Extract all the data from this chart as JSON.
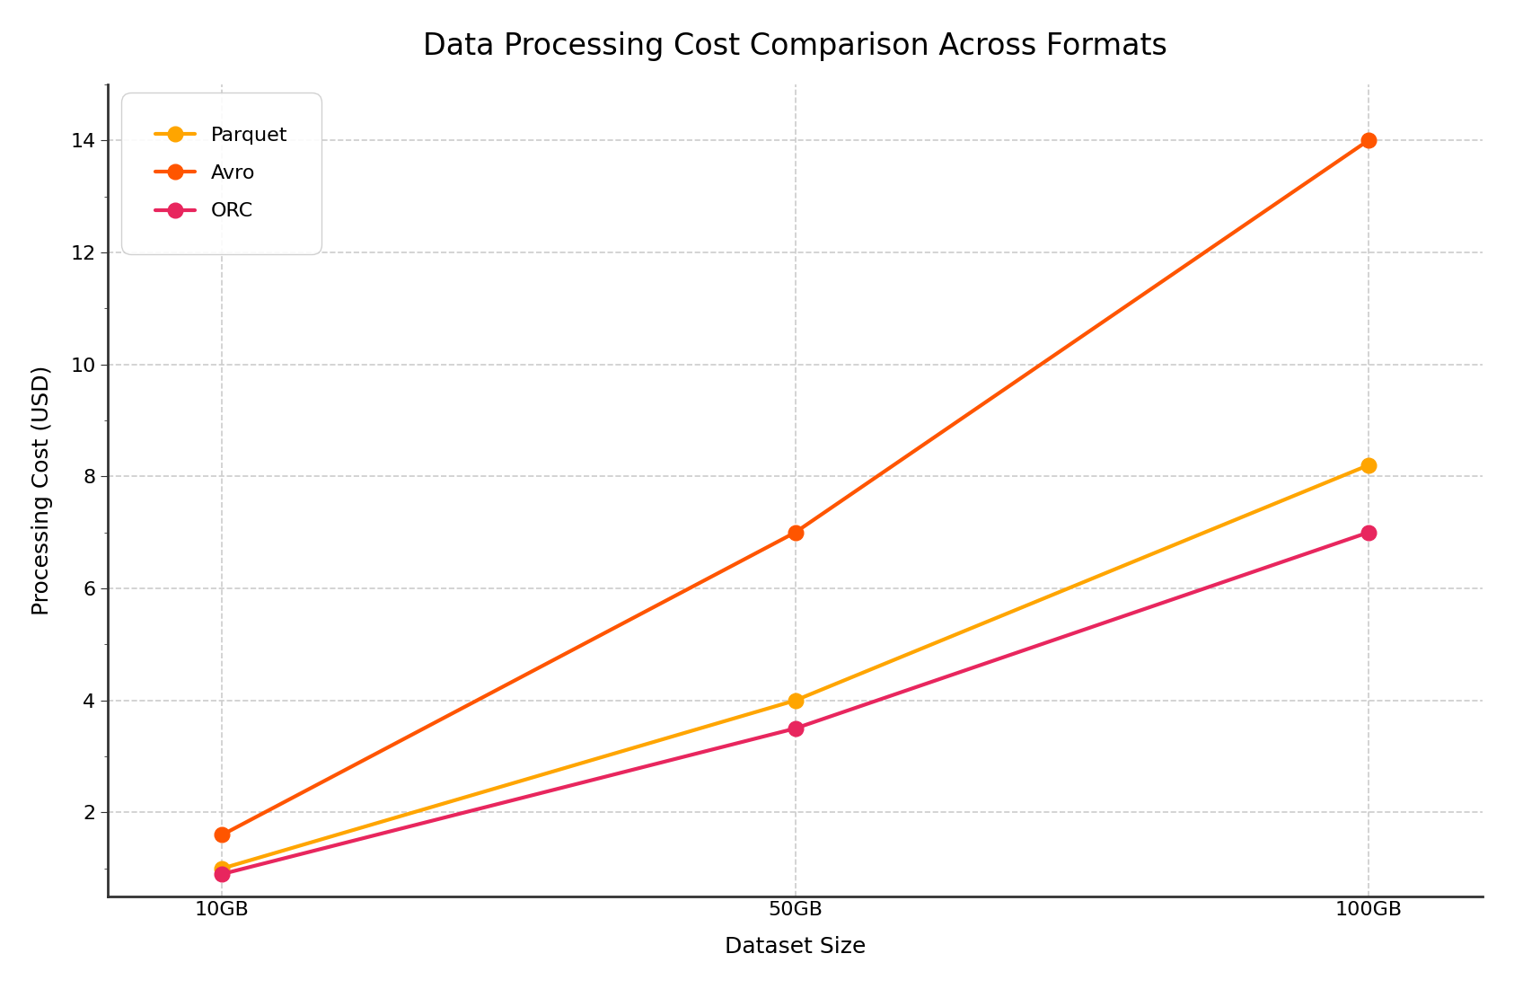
{
  "title": "Data Processing Cost Comparison Across Formats",
  "xlabel": "Dataset Size",
  "ylabel": "Processing Cost (USD)",
  "x_labels": [
    "10GB",
    "50GB",
    "100GB"
  ],
  "x_positions": [
    0,
    1,
    2
  ],
  "series": [
    {
      "name": "Parquet",
      "values": [
        1.0,
        4.0,
        8.2
      ],
      "color": "#FFA500",
      "marker": "o",
      "linewidth": 3.0,
      "markersize": 12,
      "zorder": 3
    },
    {
      "name": "Avro",
      "values": [
        1.6,
        7.0,
        14.0
      ],
      "color": "#FF5500",
      "marker": "o",
      "linewidth": 3.0,
      "markersize": 12,
      "zorder": 3
    },
    {
      "name": "ORC",
      "values": [
        0.9,
        3.5,
        7.0
      ],
      "color": "#E8265E",
      "marker": "o",
      "linewidth": 3.0,
      "markersize": 12,
      "zorder": 3
    }
  ],
  "ylim": [
    0.5,
    15.0
  ],
  "yticks": [
    2,
    4,
    6,
    8,
    10,
    12,
    14
  ],
  "grid_color": "#CCCCCC",
  "grid_linestyle": "--",
  "grid_alpha": 1.0,
  "background_color": "#FFFFFF",
  "title_fontsize": 24,
  "axis_label_fontsize": 18,
  "tick_fontsize": 16,
  "legend_fontsize": 16,
  "legend_loc": "upper left",
  "spine_color": "#333333",
  "spine_linewidth": 2.0
}
